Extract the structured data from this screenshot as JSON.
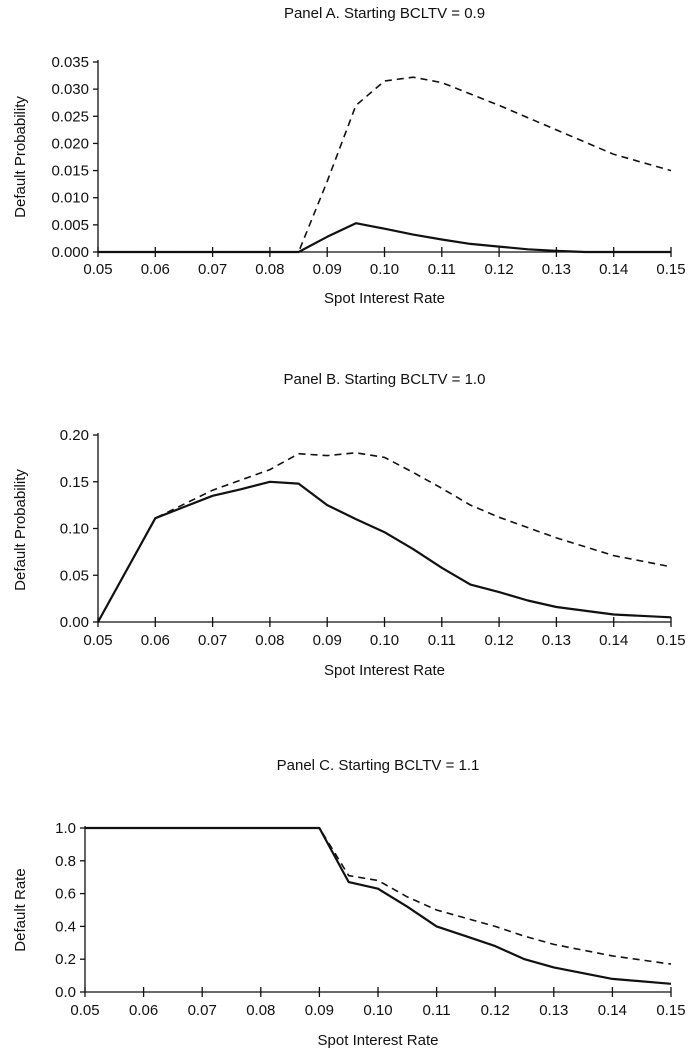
{
  "chart_data": [
    {
      "type": "line",
      "title": "Panel A.  Starting BCLTV = 0.9",
      "xlabel": "Spot Interest Rate",
      "ylabel": "Default Probability",
      "xlim": [
        0.05,
        0.15
      ],
      "ylim": [
        0,
        0.035
      ],
      "xticks": [
        "0.05",
        "0.06",
        "0.07",
        "0.08",
        "0.09",
        "0.10",
        "0.11",
        "0.12",
        "0.13",
        "0.14",
        "0.15"
      ],
      "yticks": [
        "0.000",
        "0.005",
        "0.010",
        "0.015",
        "0.020",
        "0.025",
        "0.030",
        "0.035"
      ],
      "series": [
        {
          "style": "solid",
          "x": [
            0.05,
            0.06,
            0.07,
            0.08,
            0.085,
            0.09,
            0.095,
            0.1,
            0.105,
            0.11,
            0.115,
            0.12,
            0.125,
            0.13,
            0.135,
            0.15
          ],
          "y": [
            0,
            0,
            0,
            0,
            0,
            0.0028,
            0.0053,
            0.0043,
            0.0032,
            0.0023,
            0.0015,
            0.001,
            0.0005,
            0.0002,
            0,
            0
          ]
        },
        {
          "style": "dashed",
          "x": [
            0.05,
            0.06,
            0.07,
            0.08,
            0.085,
            0.09,
            0.095,
            0.1,
            0.105,
            0.11,
            0.12,
            0.13,
            0.14,
            0.15
          ],
          "y": [
            0,
            0,
            0,
            0,
            0,
            0.013,
            0.027,
            0.0315,
            0.0322,
            0.0312,
            0.027,
            0.0225,
            0.018,
            0.015
          ]
        }
      ]
    },
    {
      "type": "line",
      "title": "Panel B.  Starting BCLTV = 1.0",
      "xlabel": "Spot Interest Rate",
      "ylabel": "Default Probability",
      "xlim": [
        0.05,
        0.15
      ],
      "ylim": [
        0,
        0.2
      ],
      "xticks": [
        "0.05",
        "0.06",
        "0.07",
        "0.08",
        "0.09",
        "0.10",
        "0.11",
        "0.12",
        "0.13",
        "0.14",
        "0.15"
      ],
      "yticks": [
        "0.00",
        "0.05",
        "0.10",
        "0.15",
        "0.20"
      ],
      "series": [
        {
          "style": "solid",
          "x": [
            0.05,
            0.06,
            0.065,
            0.07,
            0.075,
            0.08,
            0.085,
            0.09,
            0.095,
            0.1,
            0.105,
            0.11,
            0.115,
            0.12,
            0.125,
            0.13,
            0.14,
            0.15
          ],
          "y": [
            0,
            0.111,
            0.123,
            0.135,
            0.142,
            0.15,
            0.148,
            0.125,
            0.11,
            0.096,
            0.078,
            0.058,
            0.04,
            0.032,
            0.023,
            0.016,
            0.008,
            0.005
          ]
        },
        {
          "style": "dashed",
          "x": [
            0.05,
            0.06,
            0.07,
            0.08,
            0.085,
            0.09,
            0.095,
            0.1,
            0.105,
            0.11,
            0.115,
            0.12,
            0.13,
            0.14,
            0.15
          ],
          "y": [
            0,
            0.111,
            0.141,
            0.163,
            0.18,
            0.178,
            0.181,
            0.176,
            0.16,
            0.143,
            0.125,
            0.112,
            0.09,
            0.071,
            0.059
          ]
        }
      ]
    },
    {
      "type": "line",
      "title": "Panel C.  Starting BCLTV = 1.1",
      "xlabel": "Spot Interest Rate",
      "ylabel": "Default Rate",
      "xlim": [
        0.05,
        0.15
      ],
      "ylim": [
        0,
        1.0
      ],
      "xticks": [
        "0.05",
        "0.06",
        "0.07",
        "0.08",
        "0.09",
        "0.10",
        "0.11",
        "0.12",
        "0.13",
        "0.14",
        "0.15"
      ],
      "yticks": [
        "0.0",
        "0.2",
        "0.4",
        "0.6",
        "0.8",
        "1.0"
      ],
      "series": [
        {
          "style": "solid",
          "x": [
            0.05,
            0.06,
            0.07,
            0.08,
            0.09,
            0.095,
            0.1,
            0.105,
            0.11,
            0.115,
            0.12,
            0.125,
            0.13,
            0.14,
            0.15
          ],
          "y": [
            1,
            1,
            1,
            1,
            1,
            0.67,
            0.63,
            0.52,
            0.4,
            0.34,
            0.28,
            0.2,
            0.15,
            0.08,
            0.05
          ]
        },
        {
          "style": "dashed",
          "x": [
            0.05,
            0.06,
            0.07,
            0.08,
            0.09,
            0.095,
            0.1,
            0.105,
            0.11,
            0.115,
            0.12,
            0.125,
            0.13,
            0.14,
            0.15
          ],
          "y": [
            1,
            1,
            1,
            1,
            1,
            0.71,
            0.68,
            0.58,
            0.5,
            0.45,
            0.4,
            0.34,
            0.29,
            0.22,
            0.17
          ]
        }
      ]
    }
  ]
}
